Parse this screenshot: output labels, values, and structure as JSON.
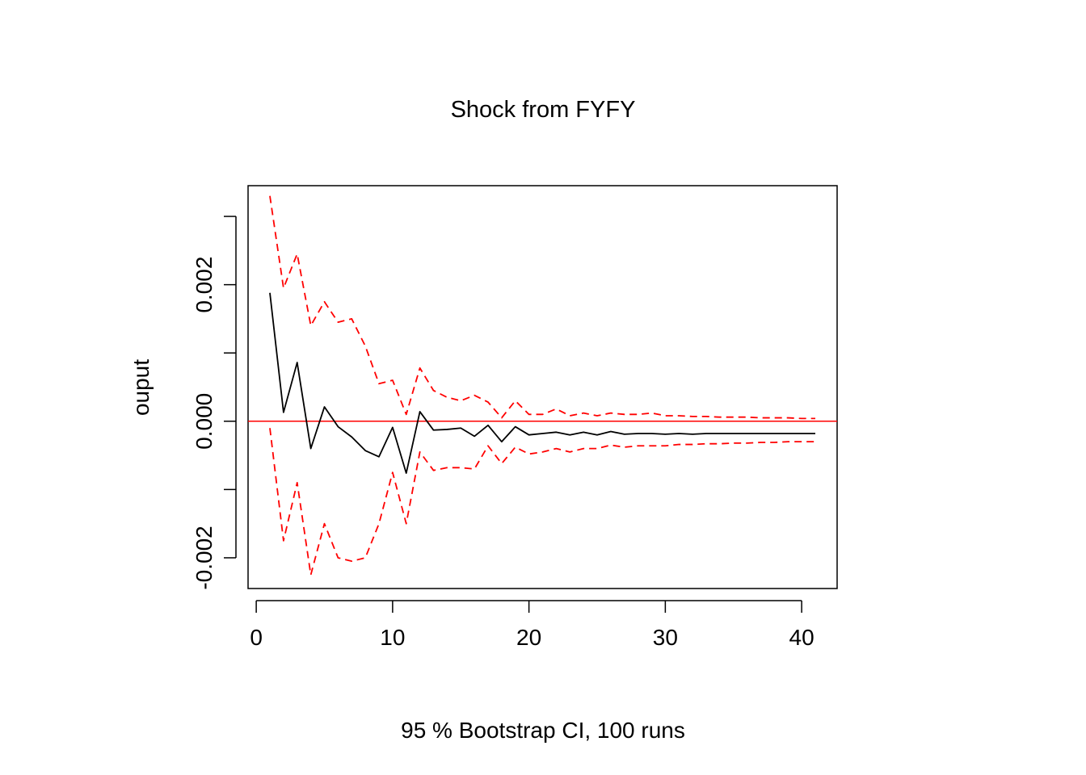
{
  "chart_data": {
    "type": "line",
    "title": "Shock from FYFY",
    "xlabel": "95 % Bootstrap CI,  100 runs",
    "ylabel": "ouput",
    "xlim": [
      -0.6,
      42.6
    ],
    "ylim": [
      -0.00245,
      0.00345
    ],
    "x_ticks": [
      0,
      10,
      20,
      30,
      40
    ],
    "x_tick_labels": [
      "0",
      "10",
      "20",
      "30",
      "40"
    ],
    "y_ticks": [
      -0.002,
      -0.001,
      0.0,
      0.001,
      0.002,
      0.003
    ],
    "y_tick_labels": [
      "-0.002",
      "",
      "0.000",
      "",
      "0.002",
      ""
    ],
    "grid": false,
    "legend": "none",
    "zero_line": {
      "y": 0.0,
      "color": "#ff0000"
    },
    "x": [
      1,
      2,
      3,
      4,
      5,
      6,
      7,
      8,
      9,
      10,
      11,
      12,
      13,
      14,
      15,
      16,
      17,
      18,
      19,
      20,
      21,
      22,
      23,
      24,
      25,
      26,
      27,
      28,
      29,
      30,
      31,
      32,
      33,
      34,
      35,
      36,
      37,
      38,
      39,
      40,
      41
    ],
    "series": [
      {
        "color": "#000000",
        "dash": "solid",
        "values": [
          0.00188,
          0.00013,
          0.00086,
          -0.0004,
          0.00021,
          -8e-05,
          -0.00023,
          -0.00043,
          -0.00052,
          -9e-05,
          -0.00076,
          0.00014,
          -0.00013,
          -0.00012,
          -0.0001,
          -0.00022,
          -6e-05,
          -0.0003,
          -8e-05,
          -0.0002,
          -0.00018,
          -0.00016,
          -0.0002,
          -0.00016,
          -0.0002,
          -0.00015,
          -0.00019,
          -0.00018,
          -0.00018,
          -0.00019,
          -0.00018,
          -0.00019,
          -0.00018,
          -0.00018,
          -0.00018,
          -0.00018,
          -0.00018,
          -0.00018,
          -0.00018,
          -0.00018,
          -0.00018
        ]
      },
      {
        "color": "#ff0000",
        "dash": "dashed",
        "values": [
          0.0033,
          0.00195,
          0.00245,
          0.0014,
          0.00175,
          0.00145,
          0.0015,
          0.0011,
          0.00055,
          0.0006,
          0.0001,
          0.00078,
          0.00045,
          0.00035,
          0.0003,
          0.00038,
          0.00028,
          5e-05,
          0.0003,
          0.0001,
          0.0001,
          0.00018,
          8e-05,
          0.00012,
          8e-05,
          0.00012,
          0.0001,
          0.0001,
          0.00012,
          8e-05,
          8e-05,
          7e-05,
          7e-05,
          6e-05,
          6e-05,
          6e-05,
          5e-05,
          5e-05,
          5e-05,
          4e-05,
          4e-05
        ]
      },
      {
        "color": "#ff0000",
        "dash": "dashed",
        "values": [
          -0.0001,
          -0.00175,
          -0.0009,
          -0.00225,
          -0.0015,
          -0.002,
          -0.00205,
          -0.002,
          -0.0015,
          -0.00075,
          -0.0015,
          -0.00045,
          -0.00072,
          -0.00068,
          -0.00068,
          -0.0007,
          -0.00036,
          -0.00062,
          -0.00038,
          -0.00048,
          -0.00045,
          -0.0004,
          -0.00045,
          -0.0004,
          -0.0004,
          -0.00035,
          -0.00038,
          -0.00036,
          -0.00036,
          -0.00036,
          -0.00034,
          -0.00034,
          -0.00033,
          -0.00033,
          -0.00032,
          -0.00032,
          -0.00031,
          -0.00031,
          -0.0003,
          -0.0003,
          -0.0003
        ]
      }
    ]
  }
}
